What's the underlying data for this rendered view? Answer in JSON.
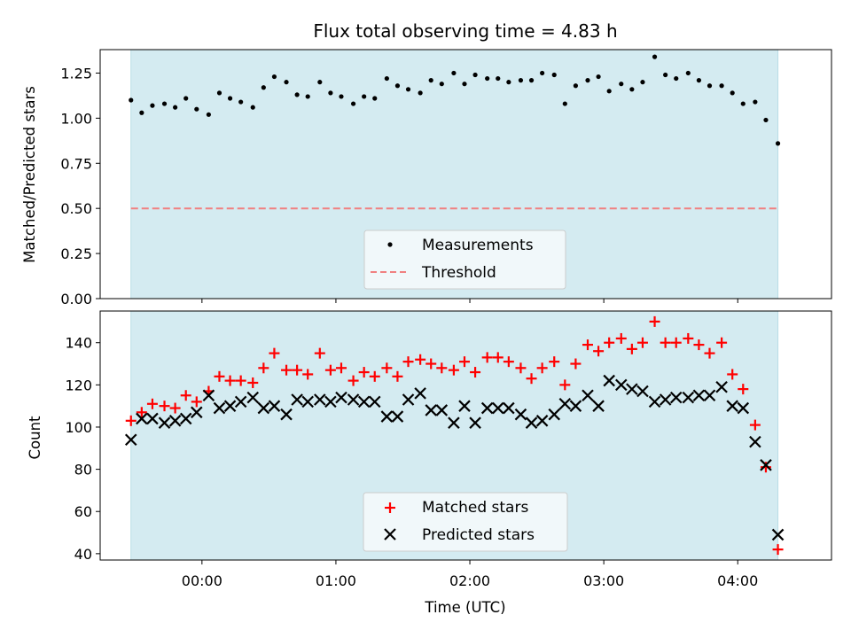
{
  "chart_data": [
    {
      "type": "scatter",
      "title": "Flux total observing time = 4.83 h",
      "xlabel": "",
      "ylabel": "Matched/Predicted stars",
      "ylim": [
        0,
        1.38
      ],
      "y_ticks": [
        "0.00",
        "0.25",
        "0.50",
        "0.75",
        "1.00",
        "1.25"
      ],
      "y_tick_values": [
        0,
        0.25,
        0.5,
        0.75,
        1.0,
        1.25
      ],
      "x_unit": "hours_since_00:00_UTC",
      "xlim": [
        -0.76,
        4.7
      ],
      "observing_window": [
        -0.53,
        4.3
      ],
      "window_color": "#d4ebf1",
      "threshold": {
        "name": "Threshold",
        "value": 0.5,
        "color": "#f08080"
      },
      "legend": {
        "placement": "lower-center",
        "entries": [
          "Measurements",
          "Threshold"
        ]
      },
      "series": [
        {
          "name": "Measurements",
          "color": "#000000",
          "marker": "dot",
          "x": [
            -0.53,
            -0.45,
            -0.37,
            -0.28,
            -0.2,
            -0.12,
            -0.04,
            0.05,
            0.13,
            0.21,
            0.29,
            0.38,
            0.46,
            0.54,
            0.63,
            0.71,
            0.79,
            0.88,
            0.96,
            1.04,
            1.13,
            1.21,
            1.29,
            1.38,
            1.46,
            1.54,
            1.63,
            1.71,
            1.79,
            1.88,
            1.96,
            2.04,
            2.13,
            2.21,
            2.29,
            2.38,
            2.46,
            2.54,
            2.63,
            2.71,
            2.79,
            2.88,
            2.96,
            3.04,
            3.13,
            3.21,
            3.29,
            3.38,
            3.46,
            3.54,
            3.63,
            3.71,
            3.79,
            3.88,
            3.96,
            4.04,
            4.13,
            4.21,
            4.3
          ],
          "y": [
            1.1,
            1.03,
            1.07,
            1.08,
            1.06,
            1.11,
            1.05,
            1.02,
            1.14,
            1.11,
            1.09,
            1.06,
            1.17,
            1.23,
            1.2,
            1.13,
            1.12,
            1.2,
            1.14,
            1.12,
            1.08,
            1.12,
            1.11,
            1.22,
            1.18,
            1.16,
            1.14,
            1.21,
            1.19,
            1.25,
            1.19,
            1.24,
            1.22,
            1.22,
            1.2,
            1.21,
            1.21,
            1.25,
            1.24,
            1.08,
            1.18,
            1.21,
            1.23,
            1.15,
            1.19,
            1.16,
            1.2,
            1.34,
            1.24,
            1.22,
            1.25,
            1.21,
            1.18,
            1.18,
            1.14,
            1.08,
            1.09,
            0.99,
            0.86
          ]
        }
      ]
    },
    {
      "type": "scatter",
      "title": "",
      "xlabel": "Time (UTC)",
      "ylabel": "Count",
      "ylim": [
        37,
        155
      ],
      "y_ticks": [
        "40",
        "60",
        "80",
        "100",
        "120",
        "140"
      ],
      "y_tick_values": [
        40,
        60,
        80,
        100,
        120,
        140
      ],
      "x_ticks": [
        "00:00",
        "01:00",
        "02:00",
        "03:00",
        "04:00"
      ],
      "x_tick_values": [
        0,
        1,
        2,
        3,
        4
      ],
      "x_unit": "hours_since_00:00_UTC",
      "xlim": [
        -0.76,
        4.7
      ],
      "observing_window": [
        -0.53,
        4.3
      ],
      "window_color": "#d4ebf1",
      "legend": {
        "placement": "lower-center",
        "entries": [
          "Matched stars",
          "Predicted stars"
        ]
      },
      "series": [
        {
          "name": "Matched stars",
          "color": "#ff0000",
          "marker": "plus",
          "x": [
            -0.53,
            -0.45,
            -0.37,
            -0.28,
            -0.2,
            -0.12,
            -0.04,
            0.05,
            0.13,
            0.21,
            0.29,
            0.38,
            0.46,
            0.54,
            0.63,
            0.71,
            0.79,
            0.88,
            0.96,
            1.04,
            1.13,
            1.21,
            1.29,
            1.38,
            1.46,
            1.54,
            1.63,
            1.71,
            1.79,
            1.88,
            1.96,
            2.04,
            2.13,
            2.21,
            2.29,
            2.38,
            2.46,
            2.54,
            2.63,
            2.71,
            2.79,
            2.88,
            2.96,
            3.04,
            3.13,
            3.21,
            3.29,
            3.38,
            3.46,
            3.54,
            3.63,
            3.71,
            3.79,
            3.88,
            3.96,
            4.04,
            4.13,
            4.21,
            4.3
          ],
          "y": [
            103,
            107,
            111,
            110,
            109,
            115,
            112,
            117,
            124,
            122,
            122,
            121,
            128,
            135,
            127,
            127,
            125,
            135,
            127,
            128,
            122,
            126,
            124,
            128,
            124,
            131,
            132,
            130,
            128,
            127,
            131,
            126,
            133,
            133,
            131,
            128,
            123,
            128,
            131,
            120,
            130,
            139,
            136,
            140,
            142,
            137,
            140,
            150,
            140,
            140,
            142,
            139,
            135,
            140,
            125,
            118,
            101,
            81,
            42
          ]
        },
        {
          "name": "Predicted stars",
          "color": "#000000",
          "marker": "x",
          "x": [
            -0.53,
            -0.45,
            -0.37,
            -0.28,
            -0.2,
            -0.12,
            -0.04,
            0.05,
            0.13,
            0.21,
            0.29,
            0.38,
            0.46,
            0.54,
            0.63,
            0.71,
            0.79,
            0.88,
            0.96,
            1.04,
            1.13,
            1.21,
            1.29,
            1.38,
            1.46,
            1.54,
            1.63,
            1.71,
            1.79,
            1.88,
            1.96,
            2.04,
            2.13,
            2.21,
            2.29,
            2.38,
            2.46,
            2.54,
            2.63,
            2.71,
            2.79,
            2.88,
            2.96,
            3.04,
            3.13,
            3.21,
            3.29,
            3.38,
            3.46,
            3.54,
            3.63,
            3.71,
            3.79,
            3.88,
            3.96,
            4.04,
            4.13,
            4.21,
            4.3
          ],
          "y": [
            94,
            104,
            104,
            102,
            103,
            104,
            107,
            115,
            109,
            110,
            112,
            114,
            109,
            110,
            106,
            113,
            112,
            113,
            112,
            114,
            113,
            112,
            112,
            105,
            105,
            113,
            116,
            108,
            108,
            102,
            110,
            102,
            109,
            109,
            109,
            106,
            102,
            103,
            106,
            111,
            110,
            115,
            110,
            122,
            120,
            118,
            117,
            112,
            113,
            114,
            114,
            115,
            115,
            119,
            110,
            109,
            93,
            82,
            49
          ]
        }
      ]
    }
  ]
}
